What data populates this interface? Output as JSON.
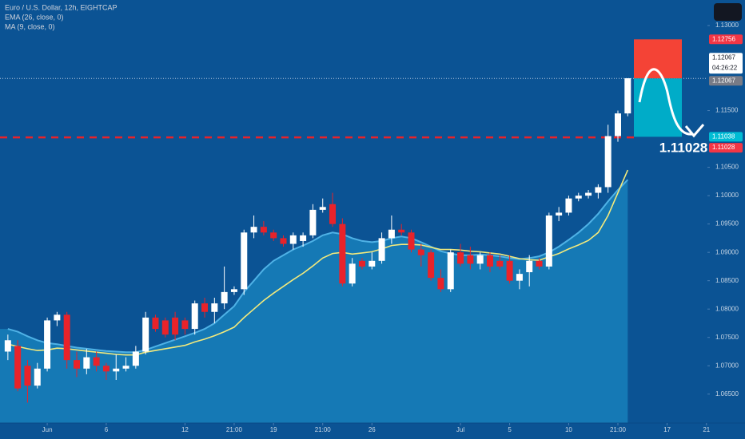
{
  "chart_data": {
    "type": "candlestick",
    "title": "Euro / U.S. Dollar, 12h, EIGHTCAP",
    "ylim": [
      1.0599,
      1.1345
    ],
    "yticks": [
      {
        "value": 1.065,
        "label": "1.06500"
      },
      {
        "value": 1.07,
        "label": "1.07000"
      },
      {
        "value": 1.075,
        "label": "1.07500"
      },
      {
        "value": 1.08,
        "label": "1.08000"
      },
      {
        "value": 1.085,
        "label": "1.08500"
      },
      {
        "value": 1.09,
        "label": "1.09000"
      },
      {
        "value": 1.095,
        "label": "1.09500"
      },
      {
        "value": 1.1,
        "label": "1.10000"
      },
      {
        "value": 1.105,
        "label": "1.10500"
      },
      {
        "value": 1.115,
        "label": "1.11500"
      },
      {
        "value": 1.13,
        "label": "1.13000"
      }
    ],
    "xlim": [
      -0.8,
      71.1
    ],
    "xticks": [
      {
        "value": 4,
        "label": "Jun"
      },
      {
        "value": 10,
        "label": "6"
      },
      {
        "value": 18,
        "label": "12"
      },
      {
        "value": 23,
        "label": "21:00"
      },
      {
        "value": 27,
        "label": "19"
      },
      {
        "value": 32,
        "label": "21:00"
      },
      {
        "value": 37,
        "label": "26"
      },
      {
        "value": 46,
        "label": "Jul"
      },
      {
        "value": 51,
        "label": "5"
      },
      {
        "value": 57,
        "label": "10"
      },
      {
        "value": 62,
        "label": "21:00"
      },
      {
        "value": 67,
        "label": "17"
      },
      {
        "value": 71,
        "label": "21"
      }
    ],
    "up_color": "#ffffff",
    "down_color": "#e8232a",
    "open": [
      1.0725,
      1.0735,
      1.07,
      1.0665,
      1.0695,
      1.078,
      1.079,
      1.071,
      1.0695,
      1.0715,
      1.07,
      1.069,
      1.0695,
      1.07,
      1.0725,
      1.0785,
      1.078,
      1.0785,
      1.078,
      1.0765,
      1.081,
      1.0795,
      1.081,
      1.083,
      1.0835,
      1.0935,
      1.0945,
      1.0935,
      1.0925,
      1.0915,
      1.092,
      1.093,
      1.0975,
      1.0985,
      1.095,
      1.0845,
      1.0885,
      1.0875,
      1.0885,
      1.0925,
      1.094,
      1.0935,
      1.0905,
      1.09,
      1.0855,
      1.0835,
      1.09,
      1.0895,
      1.088,
      1.0895,
      1.0885,
      1.0885,
      1.085,
      1.0865,
      1.0885,
      1.0875,
      1.0965,
      1.097,
      1.0995,
      1.1,
      1.1005,
      1.1015,
      1.1105,
      1.1145
    ],
    "high": [
      1.0755,
      1.0745,
      1.071,
      1.0705,
      1.0785,
      1.0795,
      1.0795,
      1.0725,
      1.073,
      1.0725,
      1.0705,
      1.072,
      1.0715,
      1.0735,
      1.0795,
      1.079,
      1.0785,
      1.0795,
      1.0785,
      1.0815,
      1.082,
      1.082,
      1.0875,
      1.084,
      1.094,
      1.0965,
      1.0955,
      1.094,
      1.093,
      1.0935,
      1.0935,
      1.0985,
      1.0995,
      1.1005,
      1.096,
      1.089,
      1.089,
      1.09,
      1.0935,
      1.0965,
      1.095,
      1.094,
      1.0915,
      1.0905,
      1.087,
      1.0905,
      1.0915,
      1.091,
      1.09,
      1.09,
      1.0895,
      1.0895,
      1.087,
      1.0895,
      1.089,
      1.097,
      1.098,
      1.1,
      1.1005,
      1.101,
      1.102,
      1.1125,
      1.115,
      1.1207
    ],
    "low": [
      1.071,
      1.0655,
      1.0635,
      1.066,
      1.069,
      1.077,
      1.0695,
      1.068,
      1.0685,
      1.069,
      1.0675,
      1.0675,
      1.069,
      1.0695,
      1.072,
      1.076,
      1.075,
      1.0745,
      1.0755,
      1.0755,
      1.0785,
      1.0775,
      1.08,
      1.0825,
      1.0825,
      1.0925,
      1.093,
      1.092,
      1.091,
      1.0905,
      1.091,
      1.0925,
      1.097,
      1.0945,
      1.084,
      1.084,
      1.087,
      1.087,
      1.088,
      1.0915,
      1.093,
      1.09,
      1.0875,
      1.085,
      1.083,
      1.083,
      1.0875,
      1.087,
      1.087,
      1.0865,
      1.087,
      1.0845,
      1.0835,
      1.084,
      1.087,
      1.087,
      1.0955,
      1.0965,
      1.099,
      1.0995,
      1.0995,
      1.1005,
      1.1095,
      1.114
    ],
    "close": [
      1.0745,
      1.066,
      1.0665,
      1.0695,
      1.078,
      1.079,
      1.071,
      1.0695,
      1.0715,
      1.07,
      1.069,
      1.0695,
      1.07,
      1.0725,
      1.0785,
      1.0765,
      1.0755,
      1.0755,
      1.0765,
      1.081,
      1.0795,
      1.081,
      1.083,
      1.0835,
      1.0935,
      1.0945,
      1.0935,
      1.0925,
      1.0915,
      1.093,
      1.093,
      1.0975,
      1.098,
      1.095,
      1.0845,
      1.088,
      1.0875,
      1.0885,
      1.0925,
      1.094,
      1.0935,
      1.0905,
      1.0895,
      1.0855,
      1.0835,
      1.09,
      1.088,
      1.088,
      1.0895,
      1.0875,
      1.0875,
      1.085,
      1.0862,
      1.0885,
      1.0875,
      1.0965,
      1.097,
      1.0995,
      1.1,
      1.1005,
      1.1015,
      1.1105,
      1.1145,
      1.1207
    ],
    "series": [
      {
        "name": "EMA (26, close, 0)",
        "color": "#f3ea7c",
        "values": [
          1.0738,
          1.0734,
          1.073,
          1.0727,
          1.0728,
          1.0731,
          1.073,
          1.0728,
          1.0726,
          1.0724,
          1.0722,
          1.072,
          1.0719,
          1.0719,
          1.0724,
          1.0727,
          1.073,
          1.0733,
          1.0736,
          1.0742,
          1.0747,
          1.0753,
          1.076,
          1.0768,
          1.0785,
          1.08,
          1.0815,
          1.0828,
          1.084,
          1.0852,
          1.0863,
          1.0876,
          1.089,
          1.0898,
          1.09,
          1.0897,
          1.0899,
          1.0901,
          1.0906,
          1.0912,
          1.0914,
          1.0914,
          1.0913,
          1.0909,
          1.0905,
          1.0905,
          1.0904,
          1.0902,
          1.0901,
          1.0899,
          1.0897,
          1.0893,
          1.0889,
          1.0887,
          1.0886,
          1.0892,
          1.0898,
          1.0906,
          1.0913,
          1.0921,
          1.0935,
          1.0965,
          1.1005,
          1.1045
        ]
      },
      {
        "name": "MA (9, close, 0)",
        "color": "#1a86c0",
        "values": [
          1.0765,
          1.076,
          1.0752,
          1.0745,
          1.074,
          1.0738,
          1.0735,
          1.0732,
          1.073,
          1.0728,
          1.0726,
          1.0725,
          1.0724,
          1.0724,
          1.0728,
          1.0734,
          1.074,
          1.0746,
          1.0752,
          1.0758,
          1.0765,
          1.0775,
          1.079,
          1.0805,
          1.083,
          1.085,
          1.087,
          1.0885,
          1.0895,
          1.0905,
          1.0912,
          1.092,
          1.093,
          1.0935,
          1.0932,
          1.0925,
          1.092,
          1.0918,
          1.092,
          1.0925,
          1.0928,
          1.0925,
          1.0918,
          1.091,
          1.0902,
          1.0898,
          1.0895,
          1.0895,
          1.0896,
          1.0895,
          1.0893,
          1.089,
          1.0888,
          1.089,
          1.0893,
          1.09,
          1.091,
          1.0922,
          1.0935,
          1.095,
          1.0968,
          1.099,
          1.101,
          1.1028
        ]
      }
    ],
    "position": {
      "stop": 1.12756,
      "entry": 1.12067,
      "target": 1.11038,
      "stop_color": "#f44336",
      "target_color": "#00acc8"
    },
    "level": 1.11028,
    "target_label": "1.11028",
    "price_labels": [
      {
        "value": 1.12756,
        "label": "1.12756",
        "color": "#f23645"
      },
      {
        "value": 1.12067,
        "label": "1.12067",
        "color": "#ffffff",
        "countdown": "04:26:22"
      },
      {
        "value": 1.12067,
        "label": "1.12067",
        "color": "#787b86"
      },
      {
        "value": 1.11038,
        "label": "1.11038",
        "color": "#00bcd4"
      },
      {
        "value": 1.11028,
        "label": "1.11028",
        "color": "#f23645"
      }
    ]
  }
}
